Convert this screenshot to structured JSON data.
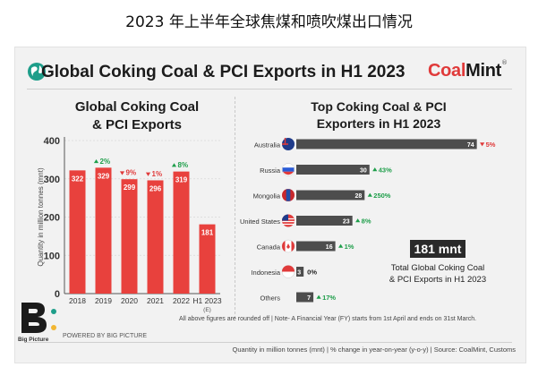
{
  "page_title": "2023 年上半年全球焦煤和喷吹煤出口情况",
  "header": {
    "title": "Global Coking Coal & PCI Exports in H1 2023",
    "brand_part1": "Coal",
    "brand_part2": "Mint",
    "brand_reg": "®"
  },
  "left_chart": {
    "title_line1": "Global Coking Coal",
    "title_line2": "& PCI Exports"
  },
  "right_chart": {
    "title_line1": "Top Coking Coal & PCI",
    "title_line2": "Exporters in H1 2023"
  },
  "callout": {
    "value": "181 mnt",
    "line1": "Total Global Coking Coal",
    "line2": "& PCI Exports in H1 2023"
  },
  "note": "All above figures are rounded off  |  Note- A Financial Year (FY) starts from 1st April and ends on 31st March.",
  "powered_by": "POWERED BY BIG PICTURE",
  "big_picture_word": "Big Picture",
  "source": "Quantity in million tonnes (mnt)  |  % change in year-on-year (y-o-y)  |  Source: CoalMint, Customs",
  "colors": {
    "bar": "#e8413d",
    "up": "#1e9e4a",
    "down": "#e03a3a",
    "hbar": "#4d4d4d"
  },
  "chart_data": [
    {
      "type": "bar",
      "title": "Global Coking Coal & PCI Exports",
      "ylabel": "Quantity in million tonnes (mnt)",
      "categories": [
        "2018",
        "2019",
        "2020",
        "2021",
        "2022",
        "H1 2023"
      ],
      "category_notes": [
        "",
        "",
        "",
        "",
        "",
        "(E)"
      ],
      "values": [
        322,
        329,
        299,
        296,
        319,
        181
      ],
      "value_labels": [
        "322",
        "329",
        "299",
        "296",
        "319",
        "181"
      ],
      "changes": [
        "",
        "2%",
        "9%",
        "1%",
        "8%",
        ""
      ],
      "change_dirs": [
        "",
        "up",
        "down",
        "down",
        "up",
        ""
      ],
      "yticks": [
        "0",
        "100",
        "200",
        "300",
        "400"
      ],
      "ylim": [
        0,
        400
      ]
    },
    {
      "type": "bar",
      "orientation": "horizontal",
      "title": "Top Coking Coal & PCI Exporters in H1 2023",
      "categories": [
        "Australia",
        "Russia",
        "Mongolia",
        "United States",
        "Canada",
        "Indonesia",
        "Others"
      ],
      "values": [
        74,
        30,
        28,
        23,
        16,
        3,
        7
      ],
      "value_labels": [
        "74",
        "30",
        "28",
        "23",
        "16",
        "3",
        "7"
      ],
      "changes": [
        "5%",
        "43%",
        "250%",
        "8%",
        "1%",
        "0%",
        "17%"
      ],
      "change_dirs": [
        "down",
        "up",
        "up",
        "up",
        "up",
        "none",
        "up"
      ],
      "xlim": [
        0,
        80
      ]
    }
  ]
}
